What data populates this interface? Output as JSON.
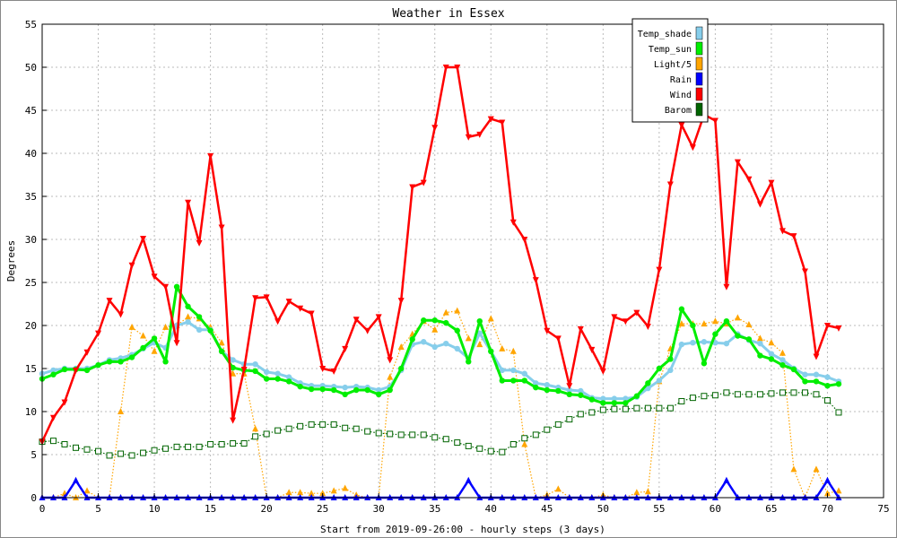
{
  "chart_data": {
    "type": "line",
    "title": "Weather in Essex",
    "xlabel": "Start from 2019-09-26:00 - hourly steps (3 days)",
    "ylabel": "Degrees",
    "xlim": [
      0,
      75
    ],
    "ylim": [
      0,
      55
    ],
    "xticks": [
      0,
      5,
      10,
      15,
      20,
      25,
      30,
      35,
      40,
      45,
      50,
      55,
      60,
      65,
      70,
      75
    ],
    "yticks": [
      0,
      5,
      10,
      15,
      20,
      25,
      30,
      35,
      40,
      45,
      50,
      55
    ],
    "grid": true,
    "legend_position": "top-right",
    "series": [
      {
        "name": "Temp_shade",
        "color": "#87ceeb",
        "marker": "dot",
        "values": [
          14.4,
          14.8,
          15.0,
          15.0,
          15.0,
          15.4,
          16.0,
          16.2,
          16.6,
          17.3,
          18.0,
          17.4,
          20.0,
          20.4,
          19.5,
          19.5,
          17.0,
          16.0,
          15.5,
          15.5,
          14.6,
          14.4,
          14.0,
          13.3,
          13.0,
          13.0,
          12.9,
          12.8,
          12.9,
          12.8,
          12.5,
          12.9,
          14.8,
          17.8,
          18.1,
          17.5,
          17.9,
          17.3,
          16.2,
          19.1,
          17.0,
          14.8,
          14.8,
          14.4,
          13.3,
          13.1,
          12.8,
          12.5,
          12.4,
          11.6,
          11.5,
          11.5,
          11.5,
          11.7,
          12.7,
          13.6,
          14.8,
          17.8,
          18.0,
          18.1,
          18.0,
          17.9,
          19.0,
          18.3,
          17.9,
          16.7,
          16.0,
          15.0,
          14.3,
          14.3,
          14.0,
          13.5
        ]
      },
      {
        "name": "Temp_sun",
        "color": "#00ee00",
        "marker": "dot",
        "values": [
          13.8,
          14.3,
          14.9,
          14.9,
          14.8,
          15.4,
          15.8,
          15.8,
          16.3,
          17.4,
          18.5,
          15.8,
          24.5,
          22.2,
          21.0,
          19.4,
          17.0,
          15.1,
          14.8,
          14.7,
          13.8,
          13.8,
          13.5,
          12.9,
          12.6,
          12.6,
          12.5,
          12.0,
          12.5,
          12.5,
          12.0,
          12.5,
          15.0,
          18.4,
          20.6,
          20.6,
          20.3,
          19.4,
          15.8,
          20.5,
          17.0,
          13.6,
          13.6,
          13.6,
          12.8,
          12.5,
          12.4,
          12.0,
          11.9,
          11.4,
          11.0,
          11.0,
          11.0,
          11.8,
          13.3,
          15.0,
          16.1,
          21.9,
          20.0,
          15.6,
          19.0,
          20.5,
          18.8,
          18.4,
          16.5,
          16.1,
          15.4,
          14.9,
          13.5,
          13.5,
          13.0,
          13.2
        ]
      },
      {
        "name": "Light/5",
        "color": "#ffa500",
        "marker": "triangle",
        "values": [
          0,
          0,
          0.5,
          0,
          0.8,
          0,
          0,
          10,
          19.8,
          18.8,
          17.0,
          19.8,
          20.0,
          21.0,
          20.8,
          19.8,
          18.0,
          14.4,
          14.4,
          8.0,
          0,
          0,
          0.6,
          0.6,
          0.5,
          0.5,
          0.8,
          1.1,
          0.3,
          0,
          0,
          14.0,
          17.5,
          19.0,
          20.5,
          19.5,
          21.5,
          21.7,
          18.5,
          17.8,
          20.8,
          17.3,
          17.0,
          6.2,
          0,
          0.3,
          1.0,
          0,
          0,
          0,
          0.3,
          0,
          0,
          0.6,
          0.7,
          13.5,
          17.3,
          20.2,
          20.2,
          20.2,
          20.5,
          20.2,
          20.9,
          20.1,
          18.5,
          18.0,
          16.8,
          3.3,
          0,
          3.3,
          0.5,
          0.8
        ]
      },
      {
        "name": "Rain",
        "color": "#0000ff",
        "marker": "triangle",
        "values": [
          0,
          0,
          0,
          2,
          0,
          0,
          0,
          0,
          0,
          0,
          0,
          0,
          0,
          0,
          0,
          0,
          0,
          0,
          0,
          0,
          0,
          0,
          0,
          0,
          0,
          0,
          0,
          0,
          0,
          0,
          0,
          0,
          0,
          0,
          0,
          0,
          0,
          0,
          2,
          0,
          0,
          0,
          0,
          0,
          0,
          0,
          0,
          0,
          0,
          0,
          0,
          0,
          0,
          0,
          0,
          0,
          0,
          0,
          0,
          0,
          0,
          2,
          0,
          0,
          0,
          0,
          0,
          0,
          0,
          0,
          2,
          0
        ]
      },
      {
        "name": "Wind",
        "color": "#ff0000",
        "marker": "triangle-down",
        "values": [
          6.5,
          9.3,
          11.1,
          14.8,
          16.9,
          19.1,
          22.9,
          21.3,
          27.0,
          30.1,
          25.7,
          24.5,
          18.0,
          34.3,
          29.6,
          39.7,
          31.4,
          9.0,
          14.9,
          23.2,
          23.3,
          20.5,
          22.8,
          22.0,
          21.4,
          15.0,
          14.7,
          17.3,
          20.7,
          19.4,
          21.0,
          16.0,
          22.9,
          36.1,
          36.6,
          43.0,
          50.0,
          50.0,
          41.9,
          42.2,
          44.0,
          43.6,
          32.0,
          30.0,
          25.3,
          19.4,
          18.5,
          13.0,
          19.6,
          17.2,
          14.7,
          21.0,
          20.5,
          21.5,
          19.9,
          26.5,
          36.4,
          43.3,
          40.7,
          44.5,
          43.8,
          24.5,
          39.0,
          37.0,
          34.1,
          36.6,
          31.0,
          30.4,
          26.3,
          16.4,
          20.0,
          19.7
        ]
      },
      {
        "name": "Barom",
        "color": "#006400",
        "marker": "square",
        "values": [
          6.5,
          6.6,
          6.2,
          5.8,
          5.6,
          5.4,
          4.9,
          5.1,
          4.9,
          5.2,
          5.5,
          5.7,
          5.9,
          5.9,
          5.9,
          6.2,
          6.2,
          6.3,
          6.3,
          7.1,
          7.4,
          7.8,
          8.0,
          8.3,
          8.5,
          8.5,
          8.5,
          8.1,
          8.0,
          7.7,
          7.5,
          7.4,
          7.3,
          7.3,
          7.3,
          7.0,
          6.8,
          6.4,
          6.0,
          5.7,
          5.4,
          5.3,
          6.2,
          6.9,
          7.3,
          7.9,
          8.5,
          9.1,
          9.7,
          9.9,
          10.2,
          10.3,
          10.3,
          10.4,
          10.4,
          10.4,
          10.4,
          11.2,
          11.6,
          11.8,
          11.9,
          12.2,
          12.0,
          12.0,
          12.0,
          12.1,
          12.2,
          12.2,
          12.2,
          12.0,
          11.3,
          9.9
        ]
      }
    ]
  }
}
